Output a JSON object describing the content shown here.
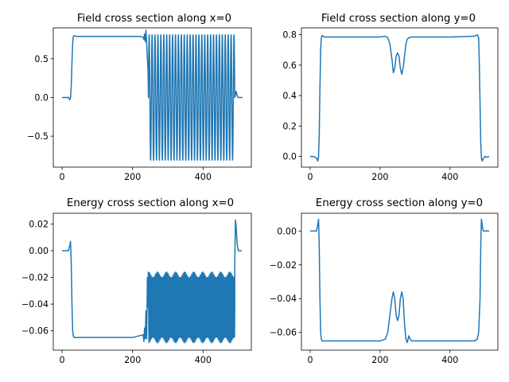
{
  "chart_data": [
    {
      "type": "line",
      "title": "Field cross section along x=0",
      "xlabel": "",
      "ylabel": "",
      "xlim": [
        -25,
        537
      ],
      "ylim": [
        -0.9,
        0.9
      ],
      "xticks": [
        0,
        200,
        400
      ],
      "yticks": [
        -0.5,
        0.0,
        0.5
      ],
      "xtick_labels": [
        "0",
        "200",
        "400"
      ],
      "ytick_labels": [
        "−0.5",
        "0.0",
        "0.5"
      ],
      "color": "#1f77b4",
      "series": [
        {
          "x": [
            0,
            10,
            18,
            22,
            24,
            26,
            28,
            30,
            32,
            34,
            40,
            60,
            100,
            150,
            200,
            220,
            230,
            232,
            234,
            236,
            238,
            240,
            242,
            244,
            245,
            490,
            494,
            497,
            500,
            504,
            508,
            512
          ],
          "y": [
            0.0,
            0.0,
            0.0,
            -0.03,
            0.0,
            0.15,
            0.45,
            0.7,
            0.79,
            0.8,
            0.79,
            0.79,
            0.79,
            0.79,
            0.79,
            0.79,
            0.78,
            0.75,
            0.82,
            0.72,
            0.87,
            0.7,
            0.5,
            0.35,
            0.5,
            0.0,
            0.08,
            0.02,
            0.0,
            0.0,
            0.0,
            0.0
          ]
        }
      ],
      "oscillation": {
        "x_start": 245,
        "x_end": 490,
        "cycles": 29.5,
        "amplitude": 0.81
      }
    },
    {
      "type": "line",
      "title": "Field cross section along y=0",
      "xlabel": "",
      "ylabel": "",
      "xlim": [
        -25,
        537
      ],
      "ylim": [
        -0.07,
        0.845
      ],
      "xticks": [
        0,
        200,
        400
      ],
      "yticks": [
        0.0,
        0.2,
        0.4,
        0.6,
        0.8
      ],
      "xtick_labels": [
        "0",
        "200",
        "400"
      ],
      "ytick_labels": [
        "0.0",
        "0.2",
        "0.4",
        "0.6",
        "0.8"
      ],
      "color": "#1f77b4",
      "series": [
        {
          "x": [
            0,
            10,
            18,
            22,
            24,
            26,
            28,
            30,
            32,
            34,
            40,
            100,
            200,
            215,
            222,
            228,
            234,
            238,
            242,
            246,
            250,
            254,
            258,
            262,
            266,
            270,
            274,
            278,
            282,
            290,
            298,
            310,
            400,
            470,
            478,
            482,
            484,
            486,
            488,
            490,
            492,
            496,
            500,
            505,
            512
          ],
          "y": [
            0.0,
            0.0,
            -0.01,
            -0.03,
            0.0,
            0.15,
            0.45,
            0.7,
            0.78,
            0.795,
            0.785,
            0.785,
            0.785,
            0.79,
            0.78,
            0.74,
            0.64,
            0.55,
            0.58,
            0.66,
            0.68,
            0.66,
            0.58,
            0.54,
            0.58,
            0.66,
            0.74,
            0.77,
            0.78,
            0.785,
            0.785,
            0.785,
            0.785,
            0.79,
            0.8,
            0.78,
            0.6,
            0.35,
            0.1,
            -0.01,
            -0.03,
            -0.01,
            0.0,
            -0.005,
            0.0
          ]
        }
      ]
    },
    {
      "type": "line",
      "title": "Energy cross section along x=0",
      "xlabel": "",
      "ylabel": "",
      "xlim": [
        -25,
        537
      ],
      "ylim": [
        -0.0745,
        0.028
      ],
      "xticks": [
        0,
        200,
        400
      ],
      "yticks": [
        -0.06,
        -0.04,
        -0.02,
        0.0,
        0.02
      ],
      "xtick_labels": [
        "0",
        "200",
        "400"
      ],
      "ytick_labels": [
        "−0.06",
        "−0.04",
        "−0.02",
        "0.00",
        "0.02"
      ],
      "color": "#1f77b4",
      "series": [
        {
          "x": [
            0,
            10,
            18,
            22,
            24,
            26,
            28,
            30,
            32,
            34,
            40,
            100,
            200,
            230,
            232,
            234,
            236,
            238,
            240,
            242,
            244,
            490,
            492,
            494,
            496,
            498,
            500,
            504,
            510
          ],
          "y": [
            0.0,
            0.0,
            0.0,
            0.004,
            0.007,
            -0.01,
            -0.04,
            -0.06,
            -0.064,
            -0.065,
            -0.065,
            -0.065,
            -0.065,
            -0.063,
            -0.068,
            -0.058,
            -0.066,
            -0.045,
            -0.066,
            -0.02,
            -0.05,
            -0.01,
            0.023,
            0.018,
            0.008,
            0.003,
            0.0,
            0.0,
            0.0
          ]
        }
      ],
      "oscillation": {
        "x_start": 244,
        "x_end": 490,
        "cycles": 70,
        "min": -0.069,
        "max": -0.016
      }
    },
    {
      "type": "line",
      "title": "Energy cross section along y=0",
      "xlabel": "",
      "ylabel": "",
      "xlim": [
        -25,
        537
      ],
      "ylim": [
        -0.0705,
        0.0105
      ],
      "xticks": [
        0,
        200,
        400
      ],
      "yticks": [
        -0.06,
        -0.04,
        -0.02,
        0.0
      ],
      "xtick_labels": [
        "0",
        "200",
        "400"
      ],
      "ytick_labels": [
        "−0.06",
        "−0.04",
        "−0.02",
        "0.00"
      ],
      "color": "#1f77b4",
      "series": [
        {
          "x": [
            0,
            10,
            18,
            22,
            24,
            26,
            28,
            30,
            32,
            34,
            40,
            100,
            200,
            215,
            222,
            228,
            234,
            238,
            242,
            246,
            250,
            254,
            258,
            262,
            266,
            270,
            274,
            278,
            282,
            286,
            290,
            300,
            400,
            470,
            478,
            482,
            486,
            488,
            490,
            492,
            494,
            496,
            500,
            505,
            512
          ],
          "y": [
            0.0,
            0.0,
            0.0,
            0.004,
            0.007,
            -0.01,
            -0.04,
            -0.06,
            -0.064,
            -0.065,
            -0.065,
            -0.065,
            -0.065,
            -0.064,
            -0.06,
            -0.05,
            -0.04,
            -0.036,
            -0.04,
            -0.05,
            -0.053,
            -0.05,
            -0.04,
            -0.036,
            -0.04,
            -0.055,
            -0.064,
            -0.066,
            -0.062,
            -0.064,
            -0.065,
            -0.065,
            -0.065,
            -0.065,
            -0.064,
            -0.06,
            -0.04,
            -0.01,
            0.007,
            0.004,
            0.001,
            0.0,
            0.0,
            0.0,
            0.0
          ]
        }
      ]
    }
  ]
}
